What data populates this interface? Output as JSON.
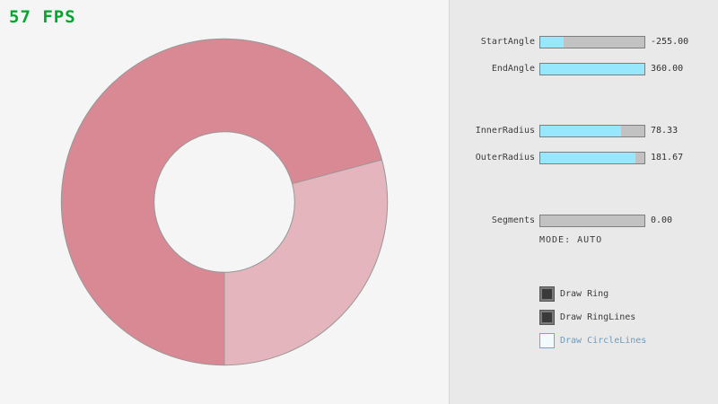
{
  "fps": {
    "text": "57 FPS"
  },
  "colors": {
    "fps_green": "#00a72f",
    "slider_fill": "#97e8ff",
    "ring_double": "#d98994",
    "ring_single": "#e4b5bc",
    "ring_outline": "#979797",
    "checkbox_blue_border": "#5bb2d9",
    "checkbox_blue_text": "#6c9bbc"
  },
  "panel": {
    "sliders": [
      {
        "name": "StartAngle",
        "value": "-255.00",
        "fill_pct": 22
      },
      {
        "name": "EndAngle",
        "value": "360.00",
        "fill_pct": 100
      },
      {
        "name": "InnerRadius",
        "value": "78.33",
        "fill_pct": 78
      },
      {
        "name": "OuterRadius",
        "value": "181.67",
        "fill_pct": 91
      },
      {
        "name": "Segments",
        "value": "0.00",
        "fill_pct": 0
      }
    ],
    "mode_text": "MODE: AUTO",
    "checkboxes": [
      {
        "label": "Draw Ring",
        "checked": true
      },
      {
        "label": "Draw RingLines",
        "checked": true
      },
      {
        "label": "Draw CircleLines",
        "checked": false
      }
    ]
  }
}
